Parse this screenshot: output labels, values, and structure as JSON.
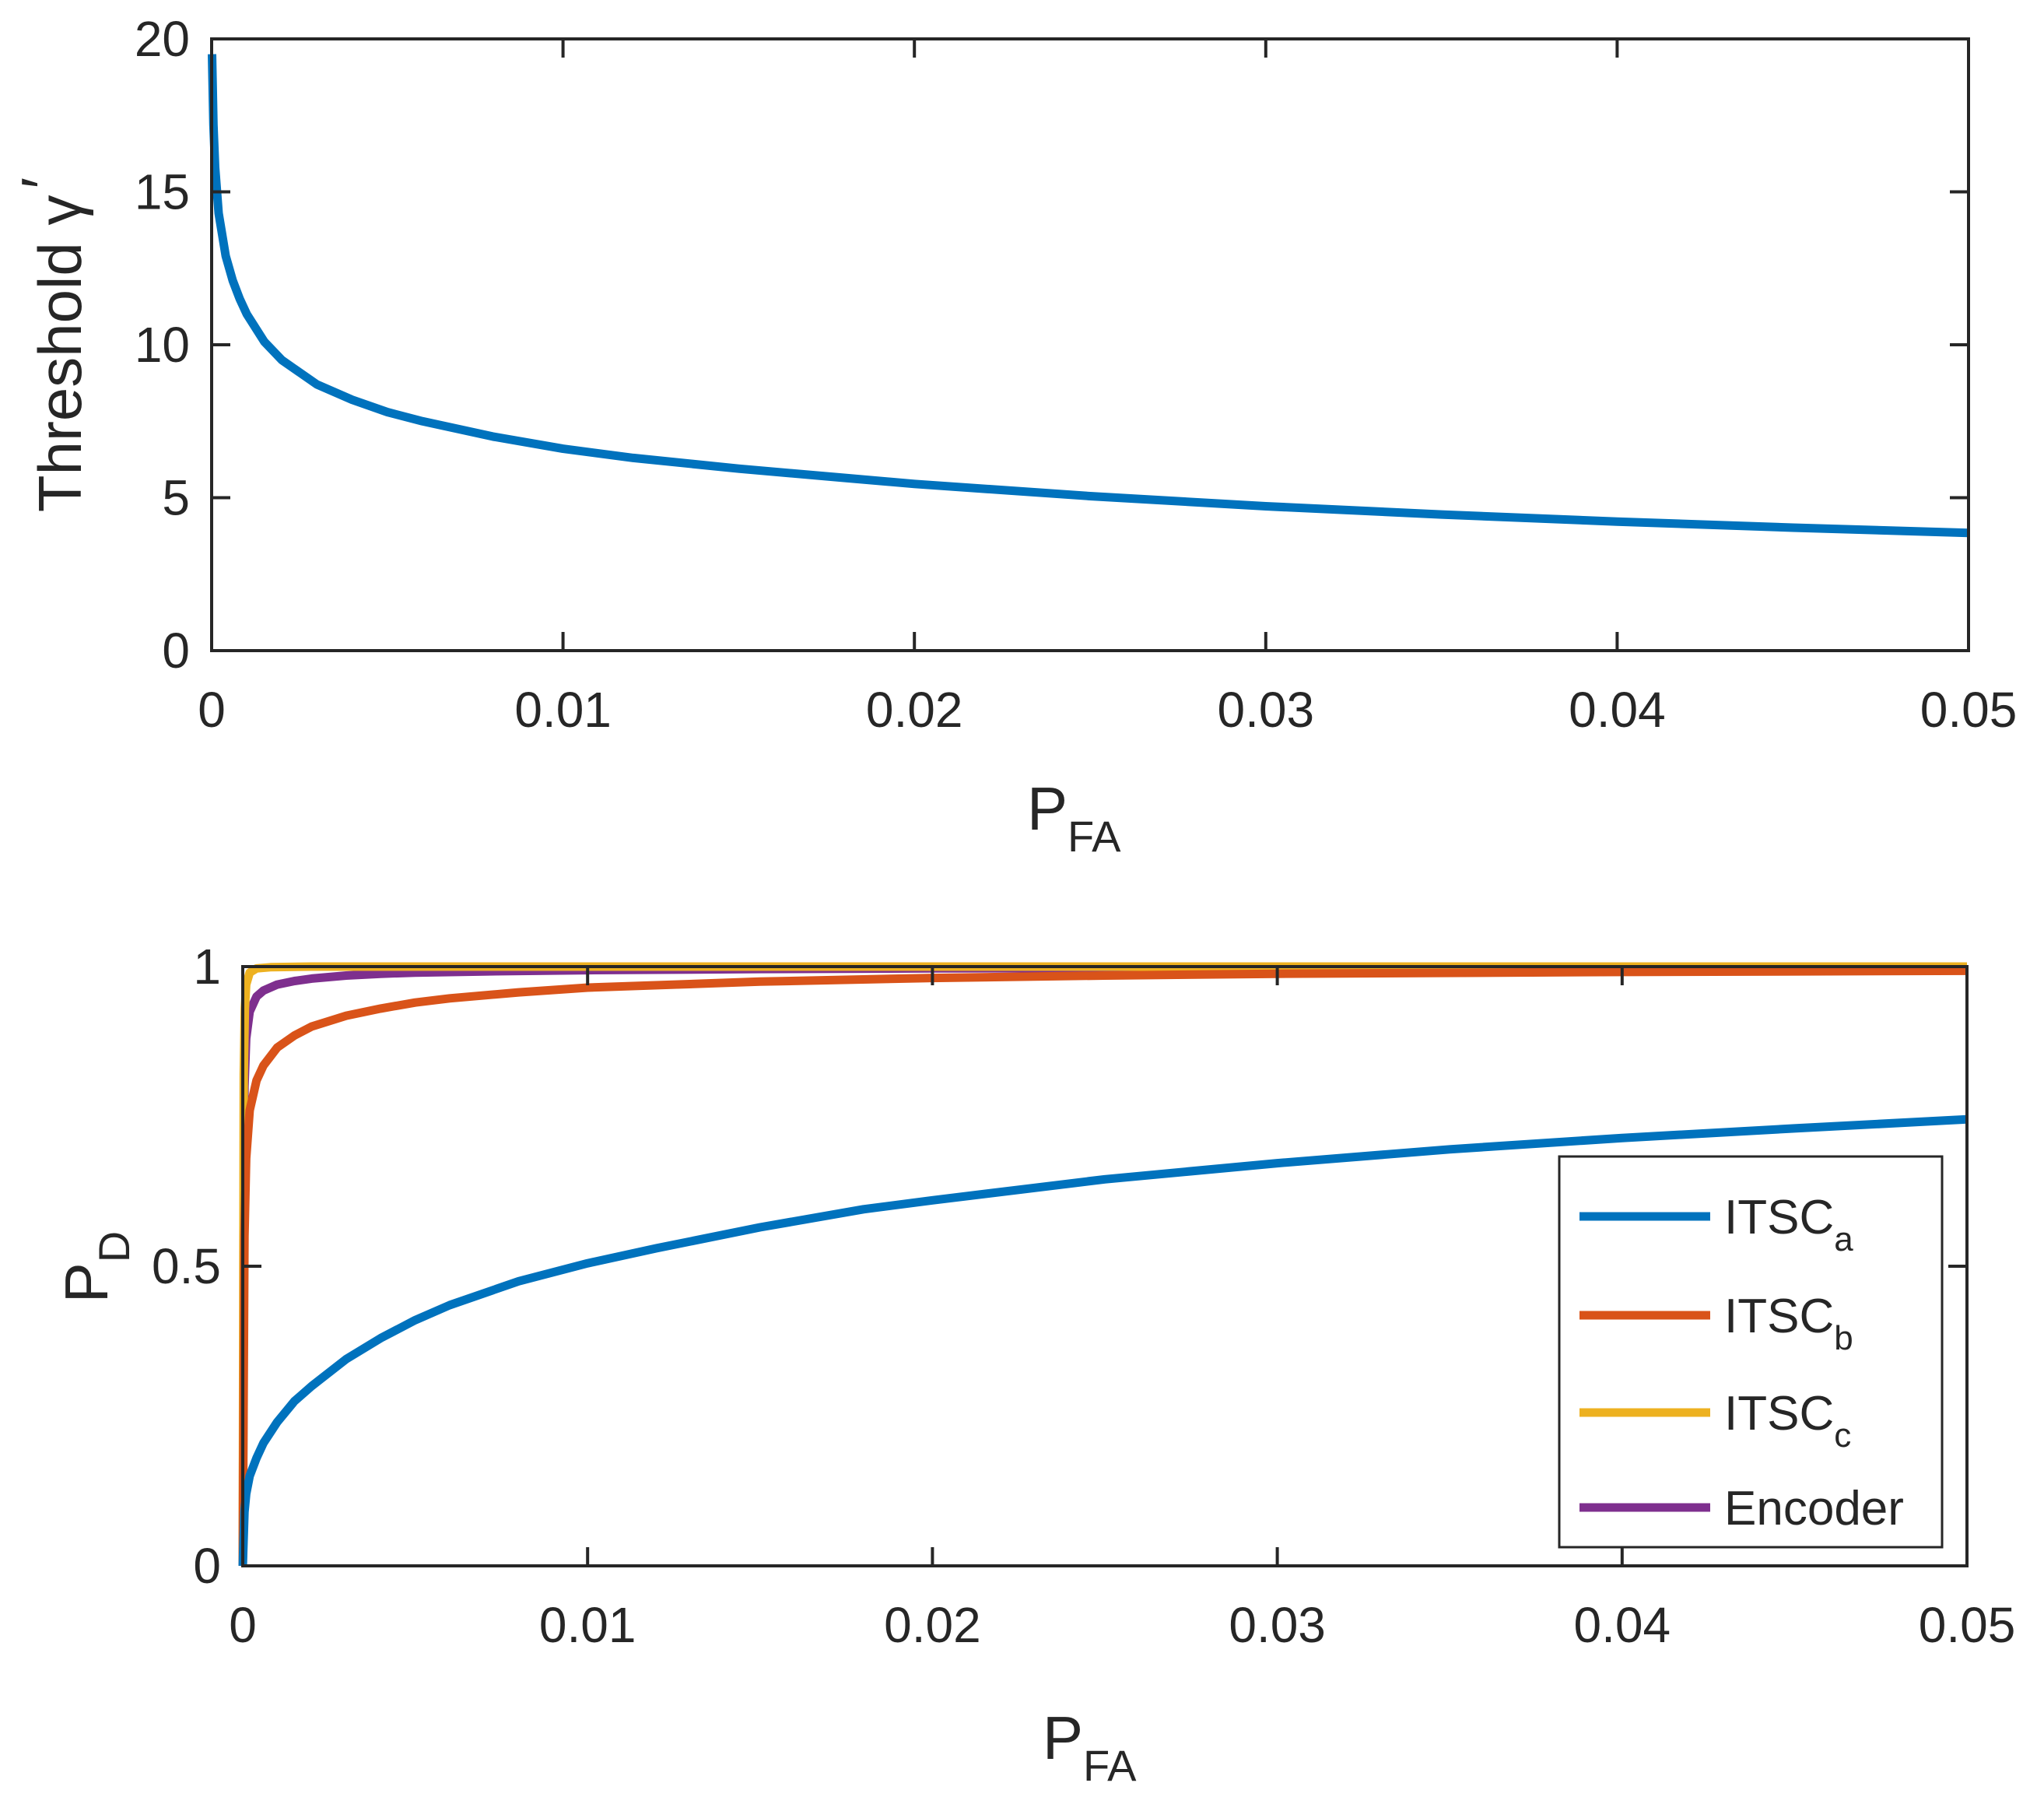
{
  "chart_data": [
    {
      "type": "line",
      "title": "",
      "xlabel": {
        "main": "P",
        "sub": "FA"
      },
      "ylabel": {
        "main": "Threshold γ",
        "prime": "′"
      },
      "xlim": [
        0,
        0.05
      ],
      "ylim": [
        0,
        20
      ],
      "xticks": [
        0,
        0.01,
        0.02,
        0.03,
        0.04,
        0.05
      ],
      "xtick_labels": [
        "0",
        "0.01",
        "0.02",
        "0.03",
        "0.04",
        "0.05"
      ],
      "yticks": [
        0,
        5,
        10,
        15,
        20
      ],
      "ytick_labels": [
        "0",
        "5",
        "10",
        "15",
        "20"
      ],
      "grid": false,
      "series": [
        {
          "name": "Threshold",
          "color": "#0072BD",
          "x": [
            1e-05,
            5e-05,
            0.0001,
            0.0002,
            0.0004,
            0.0006,
            0.0008,
            0.001,
            0.0015,
            0.002,
            0.003,
            0.004,
            0.005,
            0.006,
            0.008,
            0.01,
            0.012,
            0.015,
            0.018,
            0.02,
            0.025,
            0.03,
            0.035,
            0.04,
            0.045,
            0.05
          ],
          "y": [
            19.5,
            17.2,
            15.8,
            14.3,
            12.9,
            12.1,
            11.5,
            11.0,
            10.1,
            9.5,
            8.7,
            8.2,
            7.8,
            7.5,
            7.0,
            6.6,
            6.3,
            5.95,
            5.65,
            5.45,
            5.05,
            4.72,
            4.45,
            4.22,
            4.02,
            3.85
          ]
        }
      ]
    },
    {
      "type": "line",
      "title": "",
      "xlabel": {
        "main": "P",
        "sub": "FA"
      },
      "ylabel": {
        "main": "P",
        "sub": "D"
      },
      "xlim": [
        0,
        0.05
      ],
      "ylim": [
        0,
        1
      ],
      "xticks": [
        0,
        0.01,
        0.02,
        0.03,
        0.04,
        0.05
      ],
      "xtick_labels": [
        "0",
        "0.01",
        "0.02",
        "0.03",
        "0.04",
        "0.05"
      ],
      "yticks": [
        0,
        0.5,
        1
      ],
      "ytick_labels": [
        "0",
        "0.5",
        "1"
      ],
      "grid": false,
      "legend_position": "bottom-right",
      "series": [
        {
          "name": "ITSC",
          "sub": "a",
          "color": "#0072BD",
          "x": [
            0,
            5e-05,
            0.0001,
            0.0002,
            0.0004,
            0.0006,
            0.001,
            0.0015,
            0.002,
            0.003,
            0.004,
            0.005,
            0.006,
            0.008,
            0.01,
            0.012,
            0.015,
            0.018,
            0.02,
            0.025,
            0.03,
            0.035,
            0.04,
            0.045,
            0.05
          ],
          "y": [
            0,
            0.09,
            0.12,
            0.15,
            0.18,
            0.205,
            0.24,
            0.275,
            0.3,
            0.345,
            0.38,
            0.41,
            0.435,
            0.475,
            0.505,
            0.53,
            0.565,
            0.595,
            0.61,
            0.645,
            0.672,
            0.695,
            0.714,
            0.73,
            0.745
          ]
        },
        {
          "name": "ITSC",
          "sub": "b",
          "color": "#D95319",
          "x": [
            0,
            5e-05,
            0.0001,
            0.0002,
            0.0004,
            0.0006,
            0.001,
            0.0015,
            0.002,
            0.003,
            0.004,
            0.005,
            0.006,
            0.008,
            0.01,
            0.015,
            0.02,
            0.025,
            0.03,
            0.04,
            0.05
          ],
          "y": [
            0,
            0.55,
            0.68,
            0.76,
            0.81,
            0.835,
            0.865,
            0.885,
            0.9,
            0.918,
            0.93,
            0.94,
            0.947,
            0.957,
            0.965,
            0.975,
            0.981,
            0.985,
            0.988,
            0.991,
            0.993
          ]
        },
        {
          "name": "ITSC",
          "sub": "c",
          "color": "#EDB120",
          "x": [
            0,
            3e-05,
            6e-05,
            0.0001,
            0.0002,
            0.0004,
            0.0008,
            0.002,
            0.01,
            0.03,
            0.05
          ],
          "y": [
            0,
            0.82,
            0.93,
            0.97,
            0.99,
            0.997,
            0.999,
            1.0,
            1.0,
            1.0,
            1.0
          ]
        },
        {
          "name": "Encoder",
          "sub": "",
          "color": "#7E2F8E",
          "x": [
            0,
            5e-05,
            0.0001,
            0.0002,
            0.0004,
            0.0006,
            0.001,
            0.0015,
            0.002,
            0.003,
            0.004,
            0.005,
            0.007,
            0.01,
            0.015,
            0.02,
            0.03,
            0.04,
            0.05
          ],
          "y": [
            0,
            0.8,
            0.88,
            0.925,
            0.95,
            0.96,
            0.97,
            0.976,
            0.98,
            0.985,
            0.988,
            0.99,
            0.992,
            0.994,
            0.996,
            0.997,
            0.998,
            0.999,
            0.999
          ]
        }
      ]
    }
  ]
}
